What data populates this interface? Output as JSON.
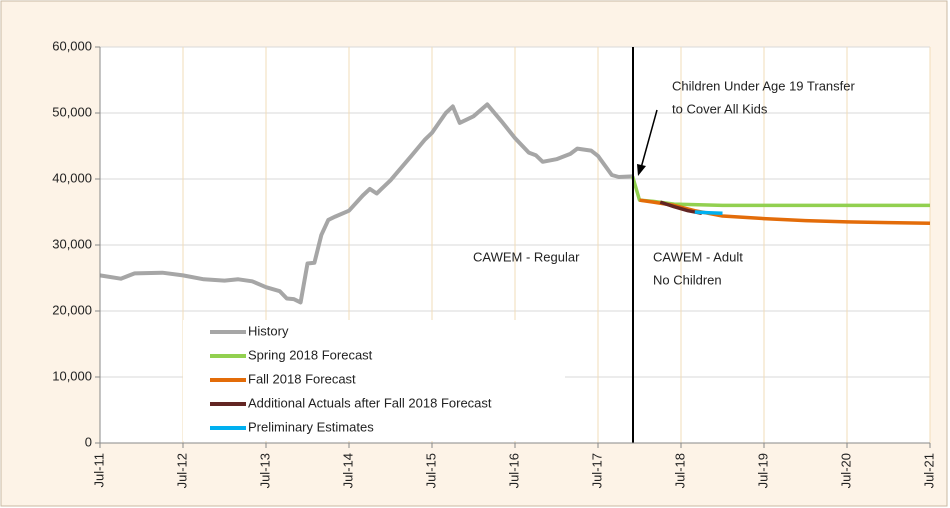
{
  "chart_data": {
    "type": "line",
    "xlim": [
      "2011-07",
      "2021-07"
    ],
    "xticks": [
      {
        "value": "2011-07",
        "label": "Jul-11"
      },
      {
        "value": "2012-07",
        "label": "Jul-12"
      },
      {
        "value": "2013-07",
        "label": "Jul-13"
      },
      {
        "value": "2014-07",
        "label": "Jul-14"
      },
      {
        "value": "2015-07",
        "label": "Jul-15"
      },
      {
        "value": "2016-07",
        "label": "Jul-16"
      },
      {
        "value": "2017-07",
        "label": "Jul-17"
      },
      {
        "value": "2018-07",
        "label": "Jul-18"
      },
      {
        "value": "2019-07",
        "label": "Jul-19"
      },
      {
        "value": "2020-07",
        "label": "Jul-20"
      },
      {
        "value": "2021-07",
        "label": "Jul-21"
      }
    ],
    "ylim": [
      0,
      60000
    ],
    "yticks": [
      0,
      {
        "value": 10000,
        "label": "10,000"
      },
      {
        "value": 20000,
        "label": "20,000"
      },
      {
        "value": 30000,
        "label": "30,000"
      },
      {
        "value": 40000,
        "label": "40,000"
      },
      {
        "value": 50000,
        "label": "50,000"
      },
      {
        "value": 60000,
        "label": "60,000"
      }
    ],
    "grid": true,
    "legend": "lower-left",
    "annotations": [
      {
        "lines": [
          "Children Under Age 19 Transfer",
          "to Cover All Kids"
        ]
      },
      {
        "lines": [
          "CAWEM - Regular"
        ]
      },
      {
        "lines": [
          "CAWEM - Adult",
          "No Children"
        ]
      }
    ],
    "series": [
      {
        "name": "History",
        "color": "#a6a6a6",
        "x": [
          "2011-07",
          "2011-10",
          "2011-12",
          "2012-04",
          "2012-07",
          "2012-10",
          "2013-01",
          "2013-03",
          "2013-05",
          "2013-07",
          "2013-09",
          "2013-10",
          "2013-11",
          "2013-12",
          "2014-01",
          "2014-02",
          "2014-03",
          "2014-04",
          "2014-05",
          "2014-07",
          "2014-09",
          "2014-10",
          "2014-11",
          "2015-01",
          "2015-04",
          "2015-06",
          "2015-07",
          "2015-08",
          "2015-09",
          "2015-10",
          "2015-11",
          "2016-01",
          "2016-03",
          "2016-05",
          "2016-07",
          "2016-09",
          "2016-10",
          "2016-11",
          "2017-01",
          "2017-03",
          "2017-04",
          "2017-06",
          "2017-07",
          "2017-09",
          "2017-10",
          "2017-12"
        ],
        "values": [
          25400,
          24900,
          25700,
          25800,
          25400,
          24800,
          24600,
          24800,
          24500,
          23600,
          23000,
          21900,
          21800,
          21300,
          27200,
          27300,
          31500,
          33800,
          34300,
          35200,
          37500,
          38500,
          37800,
          39800,
          43500,
          46000,
          47000,
          48500,
          50000,
          51000,
          48500,
          49500,
          51300,
          48800,
          46200,
          44000,
          43600,
          42600,
          43000,
          43800,
          44600,
          44300,
          43500,
          40600,
          40300,
          40400
        ]
      },
      {
        "name": "Spring 2018 Forecast",
        "color": "#92d050",
        "x": [
          "2017-12",
          "2018-01",
          "2018-03",
          "2018-06",
          "2019-01",
          "2019-11",
          "2020-09",
          "2021-07"
        ],
        "values": [
          40400,
          36800,
          36600,
          36200,
          36000,
          36000,
          36000,
          36000
        ]
      },
      {
        "name": "Fall 2018 Forecast",
        "color": "#e36c09",
        "x": [
          "2018-01",
          "2018-03",
          "2018-06",
          "2018-09",
          "2019-01",
          "2019-07",
          "2020-01",
          "2020-07",
          "2021-01",
          "2021-07"
        ],
        "values": [
          36800,
          36500,
          36000,
          35200,
          34400,
          34000,
          33700,
          33500,
          33400,
          33300
        ]
      },
      {
        "name": "Additional Actuals after Fall 2018 Forecast",
        "color": "#632523",
        "x": [
          "2018-04",
          "2018-06",
          "2018-08",
          "2018-10"
        ],
        "values": [
          36500,
          35800,
          35200,
          34800
        ]
      },
      {
        "name": "Preliminary Estimates",
        "color": "#00b0f0",
        "x": [
          "2018-09",
          "2018-11",
          "2019-01"
        ],
        "values": [
          35000,
          34900,
          34800
        ]
      }
    ]
  }
}
